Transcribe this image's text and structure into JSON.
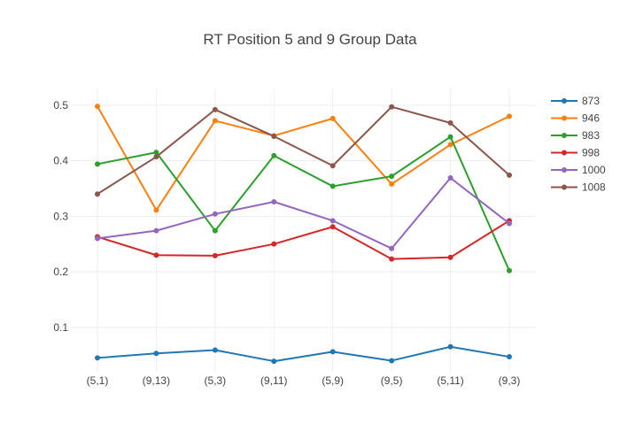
{
  "chart_data": {
    "type": "line",
    "title": "RT Position 5 and 9 Group Data",
    "xlabel": "",
    "ylabel": "",
    "categories": [
      "(5,1)",
      "(9,13)",
      "(5,3)",
      "(9,11)",
      "(5,9)",
      "(9,5)",
      "(5,11)",
      "(9,3)"
    ],
    "ylim": [
      0.02,
      0.53
    ],
    "yticks": [
      0.1,
      0.2,
      0.3,
      0.4,
      0.5
    ],
    "ytick_labels": [
      "0.1",
      "0.2",
      "0.3",
      "0.4",
      "0.5"
    ],
    "grid": true,
    "legend_position": "right",
    "series": [
      {
        "name": "873",
        "color": "#1f77b4",
        "values": [
          0.045,
          0.053,
          0.059,
          0.039,
          0.056,
          0.04,
          0.065,
          0.047
        ]
      },
      {
        "name": "946",
        "color": "#ff7f0e",
        "values": [
          0.498,
          0.311,
          0.472,
          0.445,
          0.476,
          0.358,
          0.429,
          0.48
        ]
      },
      {
        "name": "983",
        "color": "#2ca02c",
        "values": [
          0.394,
          0.415,
          0.274,
          0.409,
          0.354,
          0.372,
          0.443,
          0.202
        ]
      },
      {
        "name": "998",
        "color": "#d62728",
        "values": [
          0.263,
          0.23,
          0.229,
          0.25,
          0.281,
          0.223,
          0.226,
          0.292
        ]
      },
      {
        "name": "1000",
        "color": "#9467bd",
        "values": [
          0.26,
          0.274,
          0.304,
          0.326,
          0.292,
          0.242,
          0.369,
          0.287
        ]
      },
      {
        "name": "1008",
        "color": "#8c564b",
        "values": [
          0.34,
          0.407,
          0.492,
          0.444,
          0.391,
          0.497,
          0.468,
          0.374
        ]
      }
    ]
  }
}
